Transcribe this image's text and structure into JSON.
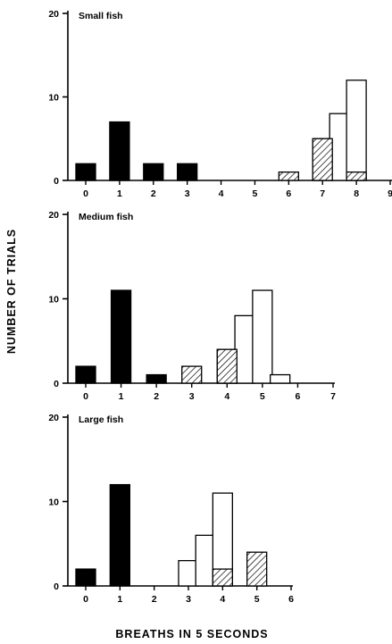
{
  "ylabel": "NUMBER OF TRIALS",
  "xlabel": "BREATHS IN 5 SECONDS",
  "chart_data": [
    {
      "type": "bar",
      "title": "Small fish",
      "ylim": [
        0,
        20
      ],
      "yticks": [
        0,
        10,
        20
      ],
      "xlim": [
        -0.5,
        9
      ],
      "xticks": [
        0,
        1,
        2,
        3,
        4,
        5,
        6,
        7,
        8,
        9
      ],
      "series": [
        {
          "style": "solid",
          "x": [
            0,
            1,
            2,
            3
          ],
          "values": [
            2,
            7,
            2,
            2
          ]
        },
        {
          "style": "open",
          "x": [
            7,
            7.5,
            8
          ],
          "values": [
            5,
            8,
            12
          ]
        },
        {
          "style": "hatched",
          "x": [
            6,
            7,
            8
          ],
          "values": [
            1,
            5,
            1
          ]
        }
      ]
    },
    {
      "type": "bar",
      "title": "Medium fish",
      "ylim": [
        0,
        20
      ],
      "yticks": [
        0,
        10,
        20
      ],
      "xlim": [
        -0.5,
        7
      ],
      "xticks": [
        0,
        1,
        2,
        3,
        4,
        5,
        6,
        7
      ],
      "series": [
        {
          "style": "solid",
          "x": [
            0,
            1,
            2
          ],
          "values": [
            2,
            11,
            1
          ]
        },
        {
          "style": "open",
          "x": [
            4,
            4.5,
            5,
            5.5
          ],
          "values": [
            4,
            8,
            11,
            1
          ]
        },
        {
          "style": "hatched",
          "x": [
            3,
            4
          ],
          "values": [
            2,
            4
          ]
        }
      ]
    },
    {
      "type": "bar",
      "title": "Large fish",
      "ylim": [
        0,
        20
      ],
      "yticks": [
        0,
        10,
        20
      ],
      "xlim": [
        -0.5,
        6
      ],
      "xticks": [
        0,
        1,
        2,
        3,
        4,
        5,
        6
      ],
      "series": [
        {
          "style": "solid",
          "x": [
            0,
            1
          ],
          "values": [
            2,
            12
          ]
        },
        {
          "style": "open",
          "x": [
            3,
            3.5,
            4
          ],
          "values": [
            3,
            6,
            11
          ]
        },
        {
          "style": "hatched",
          "x": [
            4,
            5
          ],
          "values": [
            2,
            4
          ]
        }
      ]
    }
  ]
}
